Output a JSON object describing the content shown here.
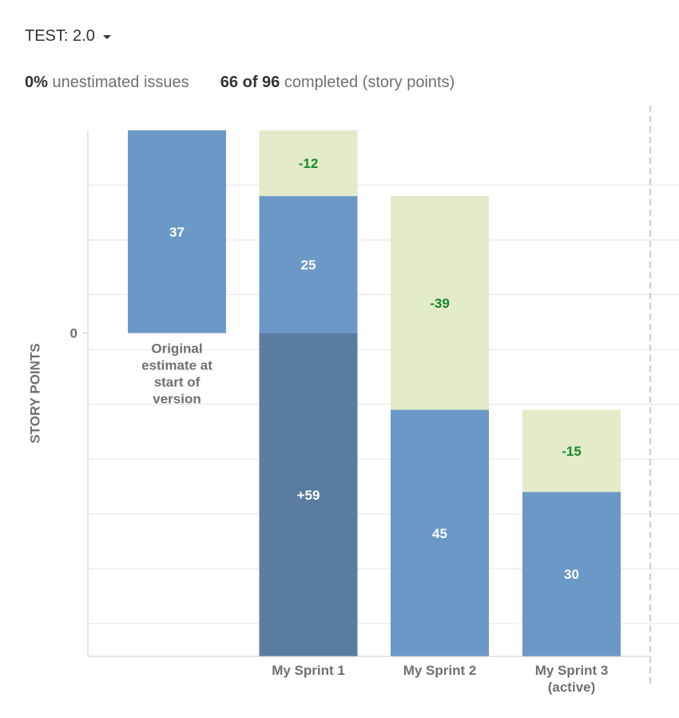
{
  "header": {
    "version_label": "TEST: 2.0"
  },
  "stats": {
    "unestimated_value": "0%",
    "unestimated_label": "unestimated issues",
    "completed_value": "66 of 96",
    "completed_label": "completed (story points)"
  },
  "chart_data": {
    "type": "bar",
    "title": "",
    "ylabel": "STORY POINTS",
    "y_ticks": [
      "0"
    ],
    "ylim": [
      -59,
      37
    ],
    "grid": true,
    "categories": [
      [
        "Original",
        "estimate at",
        "start of",
        "version"
      ],
      [
        "My Sprint 1"
      ],
      [
        "My Sprint 2"
      ],
      [
        "My Sprint 3",
        "(active)"
      ]
    ],
    "bars": [
      {
        "segments": [
          {
            "kind": "remaining",
            "from": 0,
            "to": 37,
            "label": "37"
          }
        ]
      },
      {
        "segments": [
          {
            "kind": "removed",
            "from": 25,
            "to": 37,
            "label": "-12"
          },
          {
            "kind": "remaining",
            "from": 0,
            "to": 25,
            "label": "25"
          },
          {
            "kind": "added",
            "from": -59,
            "to": 0,
            "label": "+59"
          }
        ]
      },
      {
        "segments": [
          {
            "kind": "removed",
            "from": -14,
            "to": 25,
            "label": "-39"
          },
          {
            "kind": "remaining",
            "from": -59,
            "to": -14,
            "label": "45"
          }
        ]
      },
      {
        "segments": [
          {
            "kind": "removed",
            "from": -29,
            "to": -14,
            "label": "-15"
          },
          {
            "kind": "remaining",
            "from": -59,
            "to": -29,
            "label": "30"
          }
        ]
      }
    ],
    "colors": {
      "remaining": "#6b98c7",
      "removed": "#e3ebc9",
      "added": "#5a7ca0",
      "removed_text": "#14892c",
      "grid": "#e5e5e5",
      "axis": "#cccccc"
    }
  }
}
